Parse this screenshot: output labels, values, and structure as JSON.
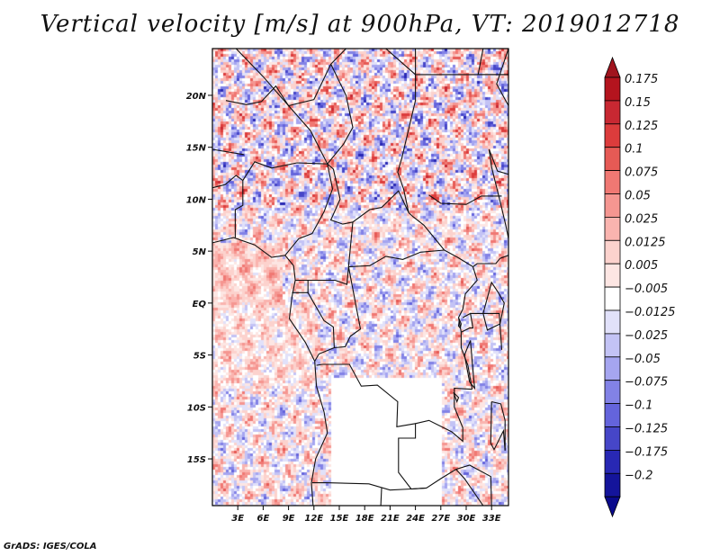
{
  "title": "Vertical velocity [m/s] at 900hPa, VT: 2019012718",
  "footer": "GrADS: IGES/COLA",
  "map": {
    "lon_range": [
      0,
      35
    ],
    "lat_range": [
      -19.5,
      24.5
    ],
    "lon_ticks": [
      {
        "value": 3,
        "label": "3E"
      },
      {
        "value": 6,
        "label": "6E"
      },
      {
        "value": 9,
        "label": "9E"
      },
      {
        "value": 12,
        "label": "12E"
      },
      {
        "value": 15,
        "label": "15E"
      },
      {
        "value": 18,
        "label": "18E"
      },
      {
        "value": 21,
        "label": "21E"
      },
      {
        "value": 24,
        "label": "24E"
      },
      {
        "value": 27,
        "label": "27E"
      },
      {
        "value": 30,
        "label": "30E"
      },
      {
        "value": 33,
        "label": "33E"
      }
    ],
    "lat_ticks": [
      {
        "value": 20,
        "label": "20N"
      },
      {
        "value": 15,
        "label": "15N"
      },
      {
        "value": 10,
        "label": "10N"
      },
      {
        "value": 5,
        "label": "5N"
      },
      {
        "value": 0,
        "label": "EQ"
      },
      {
        "value": -5,
        "label": "5S"
      },
      {
        "value": -10,
        "label": "10S"
      },
      {
        "value": -15,
        "label": "15S"
      }
    ]
  },
  "colorbar": {
    "levels": [
      {
        "label": "0.175",
        "color": "#b4141e"
      },
      {
        "label": "0.15",
        "color": "#c82832"
      },
      {
        "label": "0.125",
        "color": "#dc3c3c"
      },
      {
        "label": "0.1",
        "color": "#e65a55"
      },
      {
        "label": "0.075",
        "color": "#f07873"
      },
      {
        "label": "0.05",
        "color": "#f59691"
      },
      {
        "label": "0.025",
        "color": "#fab4af"
      },
      {
        "label": "0.0125",
        "color": "#fcd2cd"
      },
      {
        "label": "0.005",
        "color": "#fde6e3"
      },
      {
        "label": "−0.005",
        "color": "#ffffff"
      },
      {
        "label": "−0.0125",
        "color": "#e1e1fa"
      },
      {
        "label": "−0.025",
        "color": "#c3c3f5"
      },
      {
        "label": "−0.05",
        "color": "#a5a5f0"
      },
      {
        "label": "−0.075",
        "color": "#8282e6"
      },
      {
        "label": "−0.1",
        "color": "#6464dc"
      },
      {
        "label": "−0.125",
        "color": "#4646c8"
      },
      {
        "label": "−0.175",
        "color": "#2828b4"
      },
      {
        "label": "−0.2",
        "color": "#14149b"
      }
    ],
    "top_color": "#a0141e",
    "bottom_color": "#0a0a8c"
  }
}
